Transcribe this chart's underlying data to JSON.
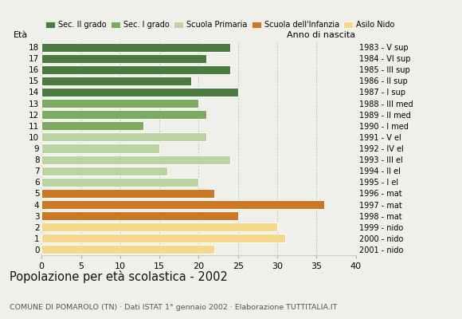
{
  "ages": [
    0,
    1,
    2,
    3,
    4,
    5,
    6,
    7,
    8,
    9,
    10,
    11,
    12,
    13,
    14,
    15,
    16,
    17,
    18
  ],
  "values": [
    22,
    31,
    30,
    25,
    36,
    22,
    20,
    16,
    24,
    15,
    21,
    13,
    21,
    20,
    25,
    19,
    24,
    21,
    24
  ],
  "right_labels": [
    "2001 - nido",
    "2000 - nido",
    "1999 - nido",
    "1998 - mat",
    "1997 - mat",
    "1996 - mat",
    "1995 - I el",
    "1994 - II el",
    "1993 - III el",
    "1992 - IV el",
    "1991 - V el",
    "1990 - I med",
    "1989 - II med",
    "1988 - III med",
    "1987 - I sup",
    "1986 - II sup",
    "1985 - III sup",
    "1984 - VI sup",
    "1983 - V sup"
  ],
  "bar_colors": [
    "#f5d98b",
    "#f5d98b",
    "#f5d98b",
    "#cc7722",
    "#cc7722",
    "#cc7722",
    "#b8d4a0",
    "#b8d4a0",
    "#b8d4a0",
    "#b8d4a0",
    "#b8d4a0",
    "#7aab5e",
    "#7aab5e",
    "#7aab5e",
    "#4a7c3f",
    "#4a7c3f",
    "#4a7c3f",
    "#4a7c3f",
    "#4a7c3f"
  ],
  "legend_labels": [
    "Sec. II grado",
    "Sec. I grado",
    "Scuola Primaria",
    "Scuola dell'Infanzia",
    "Asilo Nido"
  ],
  "legend_colors": [
    "#4a7c3f",
    "#7aab5e",
    "#b8d4a0",
    "#cc7722",
    "#f5d98b"
  ],
  "title": "Popolazione per età scolastica - 2002",
  "subtitle": "COMUNE DI POMAROLO (TN) · Dati ISTAT 1° gennaio 2002 · Elaborazione TUTTITALIA.IT",
  "xlabel_left": "Età",
  "xlabel_right": "Anno di nascita",
  "xlim": [
    0,
    40
  ],
  "xticks": [
    0,
    5,
    10,
    15,
    20,
    25,
    30,
    35,
    40
  ],
  "background_color": "#f0f0eb",
  "grid_color": "#bbbbbb"
}
